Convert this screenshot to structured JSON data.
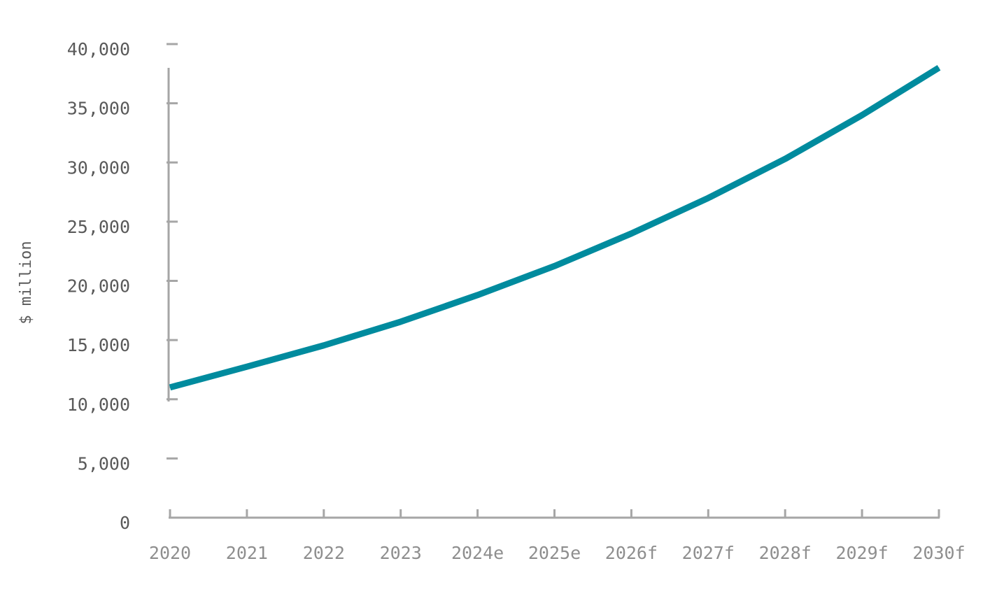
{
  "chart_data": {
    "type": "line",
    "title": "",
    "xlabel": "",
    "ylabel": "$ million",
    "categories": [
      "2020",
      "2021",
      "2022",
      "2023",
      "2024e",
      "2025e",
      "2026f",
      "2027f",
      "2028f",
      "2029f",
      "2030f"
    ],
    "series": [
      {
        "values": [
          11000,
          12750,
          14550,
          16550,
          18800,
          21250,
          24000,
          27000,
          30300,
          34000,
          38000
        ],
        "color": "#008b9e"
      }
    ],
    "yticks": [
      "0",
      "5,000",
      "10,000",
      "15,000",
      "20,000",
      "25,000",
      "30,000",
      "35,000",
      "40,000"
    ],
    "ylim": [
      0,
      40000
    ],
    "grid": false,
    "legend": "none",
    "axis_color": "#a6a6a6"
  }
}
